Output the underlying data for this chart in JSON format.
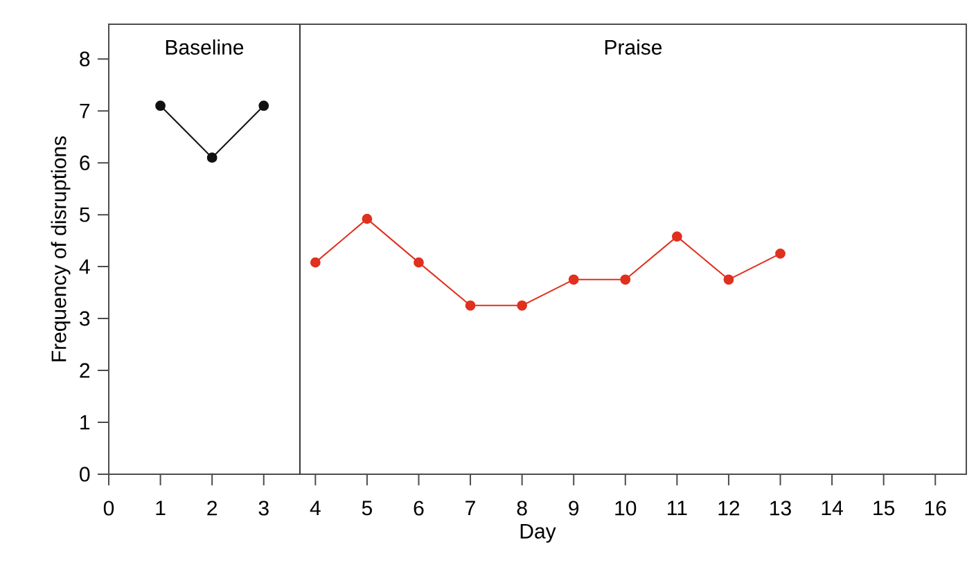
{
  "chart_data": {
    "type": "line",
    "xlabel": "Day",
    "ylabel": "Frequency of disruptions",
    "series": [
      {
        "color": "#111111",
        "x": [
          1,
          2,
          3
        ],
        "values": [
          7.1,
          6.1,
          7.1
        ]
      },
      {
        "color": "#e0301e",
        "x": [
          4,
          5,
          6,
          7,
          8,
          9,
          10,
          11,
          12,
          13
        ],
        "values": [
          4.08,
          4.92,
          4.08,
          3.25,
          3.25,
          3.75,
          3.75,
          4.58,
          3.75,
          4.25
        ]
      }
    ],
    "xlim": [
      0,
      16.6
    ],
    "ylim": [
      0,
      8.67
    ],
    "xticks": [
      0,
      1,
      2,
      3,
      4,
      5,
      6,
      7,
      8,
      9,
      10,
      11,
      12,
      13,
      14,
      15,
      16
    ],
    "yticks": [
      0,
      1,
      2,
      3,
      4,
      5,
      6,
      7,
      8
    ],
    "ref_lines": [
      {
        "axis": "x",
        "value": 3.7,
        "color": "#333333",
        "line_style": "solid"
      }
    ],
    "annotations": [
      "Baseline",
      "Praise"
    ],
    "marker": "circle",
    "line_style": "solid",
    "grid": false
  }
}
